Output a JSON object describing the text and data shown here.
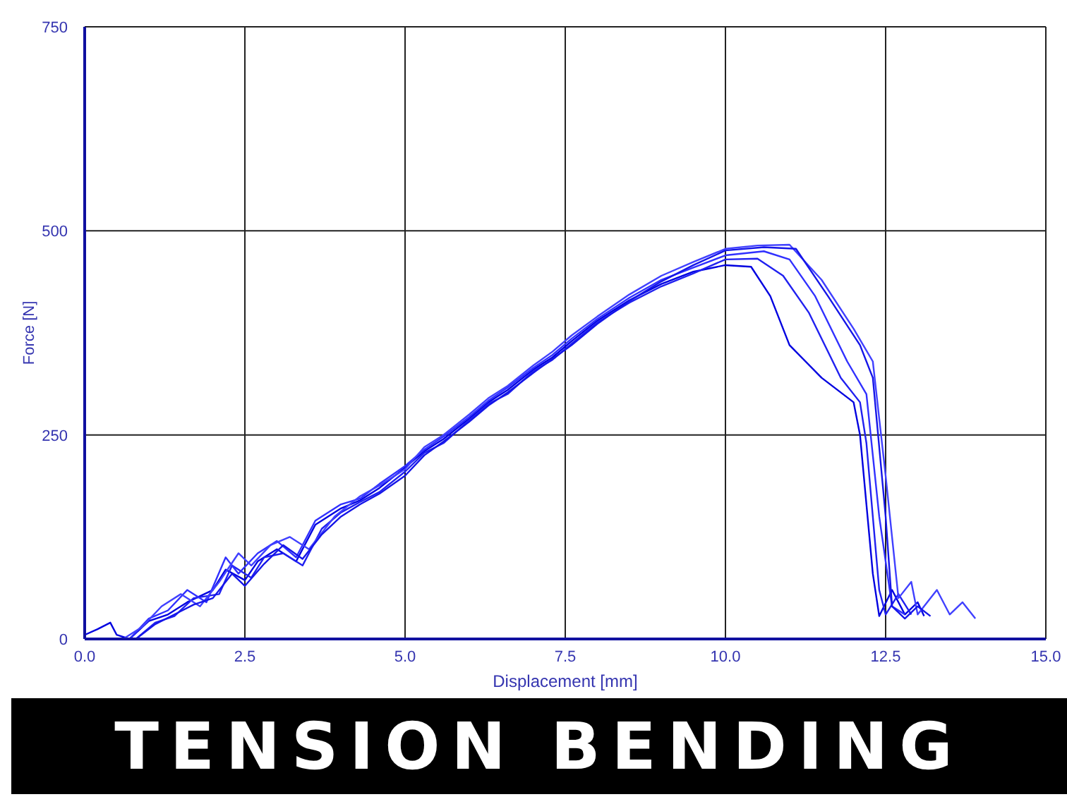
{
  "chart_data": {
    "type": "line",
    "title": "TENSION BENDING",
    "xlabel": "Displacement [mm]",
    "ylabel": "Force [N]",
    "xlim": [
      0,
      15
    ],
    "xticks": [
      {
        "value": 0,
        "label": "0.0"
      },
      {
        "value": 2.5,
        "label": "2.5"
      },
      {
        "value": 5,
        "label": "5.0"
      },
      {
        "value": 7.5,
        "label": "7.5"
      },
      {
        "value": 10,
        "label": "10.0"
      },
      {
        "value": 12.5,
        "label": "12.5"
      },
      {
        "value": 15,
        "label": "15.0"
      }
    ],
    "ylim": [
      0,
      750
    ],
    "yticks": [
      0,
      250,
      500,
      750
    ],
    "grid": true,
    "marker": "none",
    "line_style": "solid",
    "series": [
      {
        "color": "#0000e0",
        "x": [
          0,
          0.2,
          0.4,
          0.5,
          0.7,
          1.0,
          1.3,
          1.6,
          2.0,
          2.2,
          2.5,
          2.7,
          3.0,
          3.3,
          3.6,
          4.0,
          4.3,
          4.6,
          5.0,
          5.3,
          5.6,
          6.0,
          6.3,
          6.6,
          7.0,
          7.3,
          7.6,
          8.0,
          8.5,
          9.0,
          9.5,
          10.0,
          10.4,
          10.7,
          11.0,
          11.5,
          12.0,
          12.1,
          12.3,
          12.4,
          12.6,
          12.8,
          13.0,
          13.1
        ],
        "values": [
          5,
          12,
          20,
          5,
          0,
          22,
          30,
          45,
          60,
          85,
          72,
          95,
          110,
          95,
          140,
          160,
          170,
          185,
          210,
          230,
          245,
          270,
          290,
          305,
          330,
          345,
          365,
          390,
          415,
          435,
          450,
          458,
          456,
          420,
          360,
          320,
          290,
          250,
          80,
          28,
          60,
          30,
          45,
          28
        ]
      },
      {
        "color": "#2020f0",
        "x": [
          0.8,
          1.1,
          1.4,
          1.7,
          2.1,
          2.3,
          2.6,
          2.8,
          3.1,
          3.4,
          3.7,
          4.0,
          4.3,
          4.6,
          5.0,
          5.3,
          5.6,
          6.0,
          6.3,
          6.6,
          7.0,
          7.3,
          7.6,
          8.0,
          8.5,
          9.0,
          9.5,
          10.0,
          10.5,
          10.9,
          11.3,
          11.8,
          12.1,
          12.2,
          12.4,
          12.5,
          12.7,
          12.9
        ],
        "values": [
          0,
          20,
          28,
          50,
          55,
          90,
          75,
          100,
          105,
          90,
          135,
          155,
          168,
          180,
          205,
          228,
          240,
          268,
          288,
          300,
          328,
          342,
          362,
          388,
          412,
          432,
          448,
          465,
          466,
          445,
          400,
          320,
          290,
          240,
          60,
          30,
          55,
          30
        ]
      },
      {
        "color": "#3030ff",
        "x": [
          0.7,
          1.0,
          1.3,
          1.6,
          1.9,
          2.2,
          2.4,
          2.7,
          3.0,
          3.3,
          3.6,
          4.0,
          4.3,
          4.6,
          5.0,
          5.3,
          5.6,
          6.0,
          6.3,
          6.6,
          7.0,
          7.3,
          7.6,
          8.0,
          8.5,
          9.0,
          9.5,
          10.0,
          10.6,
          11.0,
          11.4,
          11.9,
          12.2,
          12.4,
          12.6,
          12.8
        ],
        "values": [
          0,
          25,
          35,
          60,
          45,
          100,
          80,
          105,
          120,
          100,
          145,
          165,
          172,
          190,
          212,
          232,
          248,
          272,
          292,
          308,
          332,
          348,
          368,
          392,
          418,
          440,
          455,
          470,
          475,
          465,
          420,
          340,
          300,
          150,
          40,
          30
        ]
      },
      {
        "color": "#4040ff",
        "x": [
          0.6,
          0.9,
          1.2,
          1.5,
          1.8,
          2.1,
          2.4,
          2.6,
          2.9,
          3.2,
          3.5,
          3.9,
          4.3,
          4.6,
          5.0,
          5.3,
          5.6,
          6.0,
          6.3,
          6.6,
          7.0,
          7.3,
          7.6,
          8.0,
          8.5,
          9.0,
          9.5,
          10.0,
          10.5,
          11.0,
          11.5,
          12.0,
          12.3,
          12.5,
          12.7,
          12.9,
          13.0,
          13.3,
          13.5,
          13.7,
          13.9
        ],
        "values": [
          0,
          15,
          40,
          55,
          40,
          70,
          105,
          90,
          115,
          125,
          110,
          150,
          175,
          188,
          208,
          235,
          250,
          275,
          295,
          310,
          335,
          352,
          372,
          395,
          422,
          445,
          462,
          478,
          482,
          483,
          440,
          380,
          340,
          200,
          50,
          70,
          30,
          60,
          30,
          45,
          25
        ]
      },
      {
        "color": "#1515e8",
        "x": [
          0.8,
          1.1,
          1.4,
          1.7,
          2.0,
          2.3,
          2.5,
          2.8,
          3.1,
          3.4,
          3.7,
          4.0,
          4.3,
          4.6,
          5.0,
          5.3,
          5.6,
          6.0,
          6.3,
          6.6,
          7.0,
          7.3,
          7.6,
          8.0,
          8.5,
          9.0,
          9.5,
          10.0,
          10.6,
          11.1,
          11.6,
          12.1,
          12.3,
          12.5,
          12.6,
          12.8,
          13.0,
          13.2
        ],
        "values": [
          0,
          18,
          30,
          42,
          50,
          80,
          65,
          92,
          115,
          98,
          128,
          150,
          165,
          178,
          200,
          225,
          242,
          266,
          286,
          302,
          326,
          343,
          360,
          386,
          414,
          438,
          458,
          476,
          480,
          478,
          420,
          360,
          320,
          150,
          40,
          25,
          40,
          28
        ]
      }
    ]
  }
}
